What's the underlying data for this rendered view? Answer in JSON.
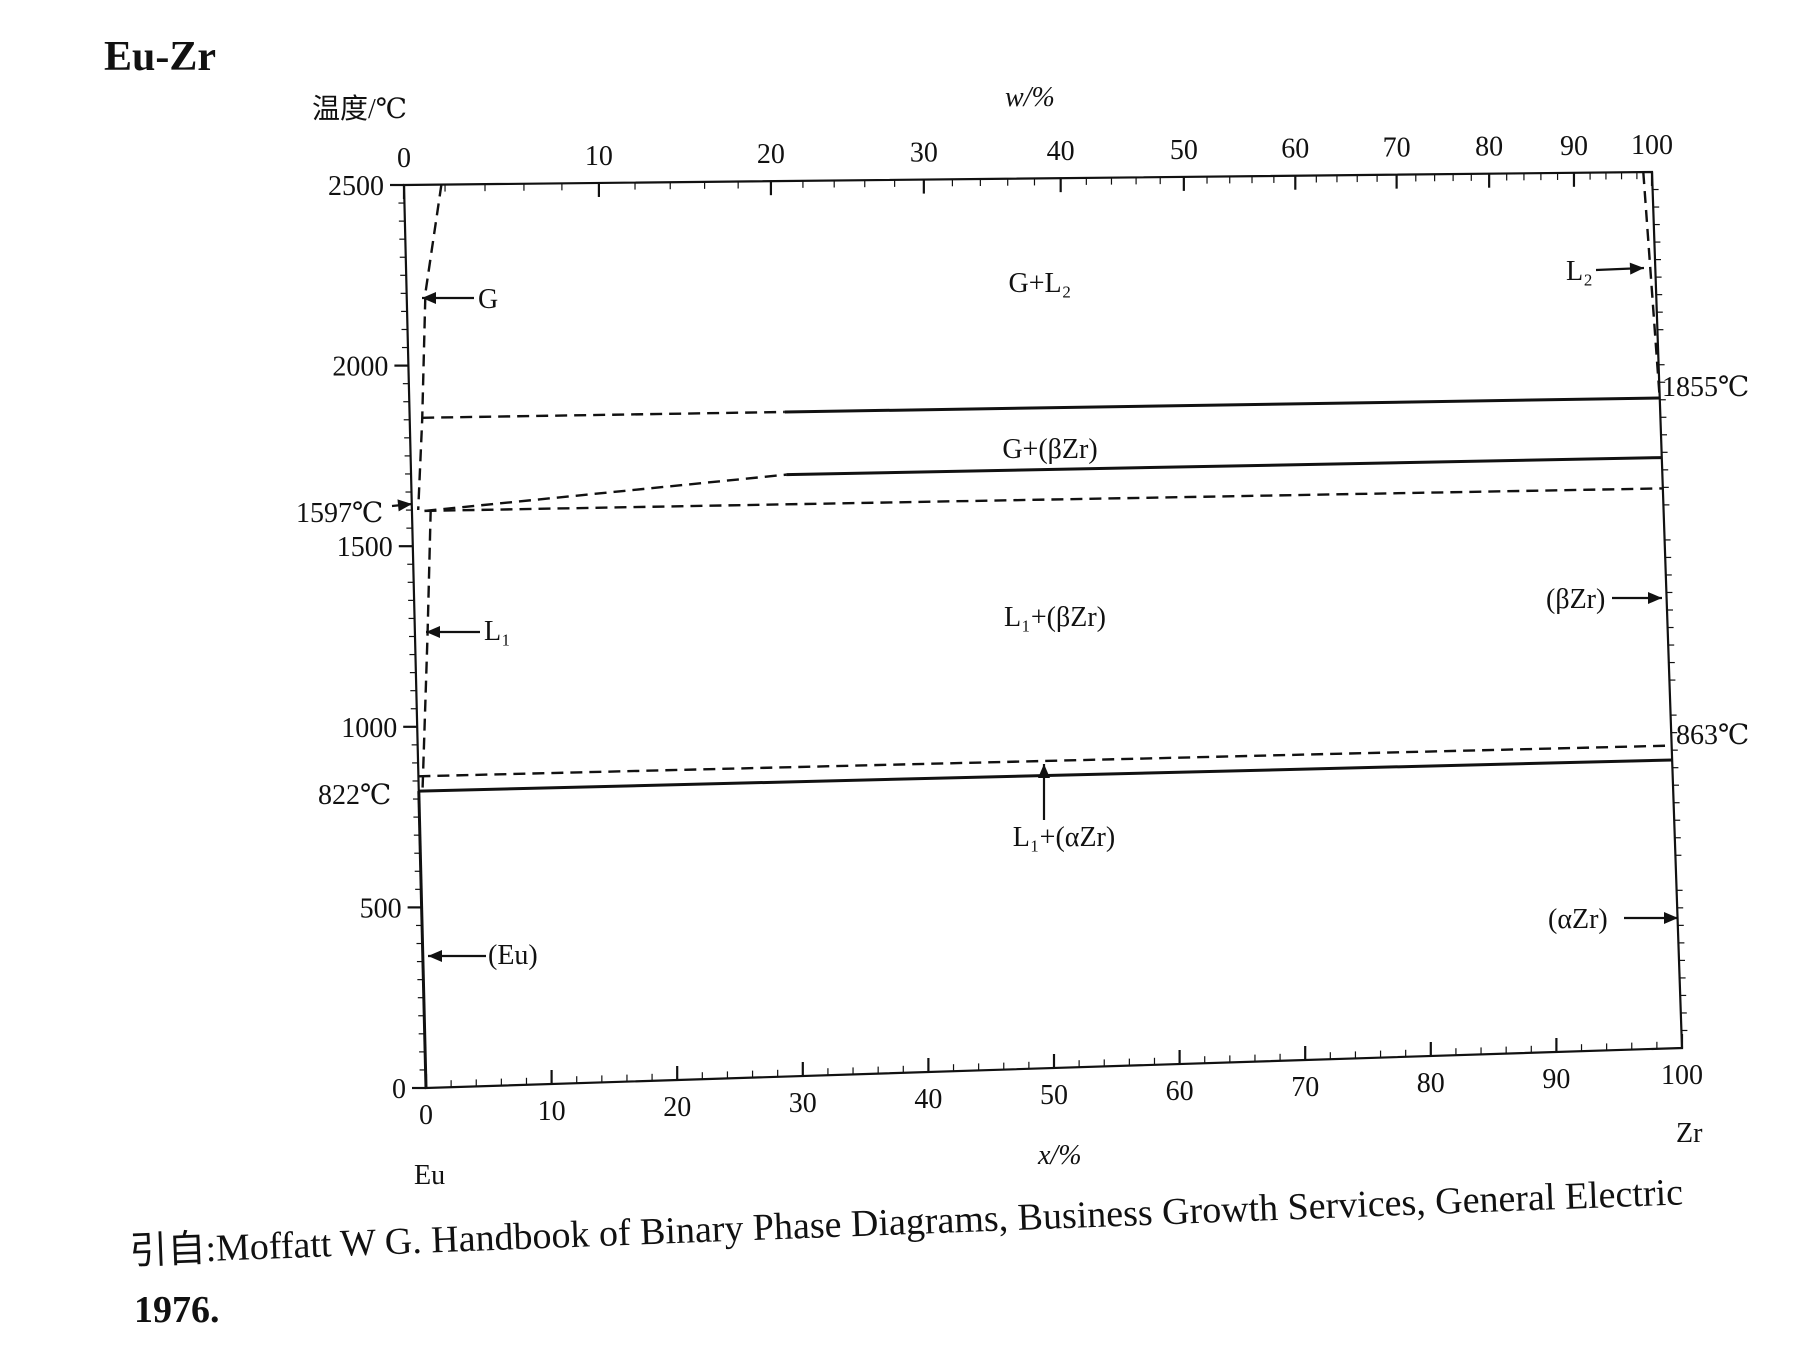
{
  "figure": {
    "title": "Eu-Zr",
    "citation_line1": "引自:Moffatt W G. Handbook of Binary Phase Diagrams, Business Growth Services, General Electric",
    "citation_line2": "1976."
  },
  "chart_data": {
    "type": "phase-diagram",
    "y_axis": {
      "label": "温度/℃",
      "ticks": [
        0,
        500,
        1000,
        1500,
        2000,
        2500
      ],
      "ylim": [
        0,
        2500
      ]
    },
    "x_axis_bottom": {
      "label": "x/%",
      "ticks": [
        0,
        10,
        20,
        30,
        40,
        50,
        60,
        70,
        80,
        90,
        100
      ],
      "xlim": [
        0,
        100
      ]
    },
    "x_axis_top": {
      "label": "w/%",
      "ticks": [
        0,
        10,
        20,
        30,
        40,
        50,
        60,
        70,
        80,
        90,
        100
      ]
    },
    "components": {
      "left": "Eu",
      "right": "Zr"
    },
    "temperature_labels": [
      "1597℃",
      "822℃",
      "1855℃",
      "863℃"
    ],
    "phase_regions": [
      "G+L₂",
      "G+(βZr)",
      "L₁+(βZr)",
      "L₁+(αZr)"
    ],
    "phase_pointers": [
      "G",
      "L₁",
      "(Eu)",
      "L₂",
      "(βZr)",
      "(αZr)"
    ],
    "boundaries": [
      {
        "name": "Eu melting horizontal",
        "style": "solid",
        "from": [
          0,
          822
        ],
        "to": [
          100,
          822
        ]
      },
      {
        "name": "Zr alpha-beta horizontal",
        "style": "dashed",
        "from": [
          0,
          863
        ],
        "to": [
          100,
          863
        ]
      },
      {
        "name": "Eu boiling horizontal",
        "style": "dashed",
        "from": [
          1,
          1597
        ],
        "to": [
          100,
          1597
        ]
      },
      {
        "name": "G+L2 lower boundary",
        "style": "dashed-solid",
        "from": [
          0,
          1855
        ],
        "to": [
          100,
          1855
        ]
      },
      {
        "name": "G phase line",
        "style": "dashed",
        "points": [
          [
            3,
            2500
          ],
          [
            1.5,
            2200
          ],
          [
            1,
            1850
          ],
          [
            0.5,
            1600
          ]
        ]
      },
      {
        "name": "L1 phase line",
        "style": "dashed",
        "points": [
          [
            1.5,
            1600
          ],
          [
            1,
            1250
          ],
          [
            0.3,
            822
          ]
        ]
      },
      {
        "name": "L2 phase line",
        "style": "dashed",
        "points": [
          [
            99.3,
            2500
          ],
          [
            100,
            1855
          ]
        ]
      },
      {
        "name": "(Eu) solid",
        "style": "solid",
        "points": [
          [
            0,
            0
          ],
          [
            0,
            822
          ]
        ]
      }
    ]
  }
}
